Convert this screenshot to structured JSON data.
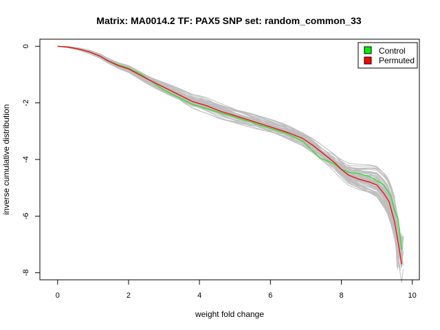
{
  "chart_data": {
    "type": "line",
    "title": "Matrix: MA0014.2 TF: PAX5 SNP set: random_common_33",
    "xlabel": "weight fold change",
    "ylabel": "inverse cumulative distribution",
    "xlim": [
      -0.5,
      10.2
    ],
    "ylim": [
      -8.25,
      0.25
    ],
    "x_ticks": [
      0,
      2,
      4,
      6,
      8,
      10
    ],
    "y_ticks": [
      0,
      -2,
      -4,
      -6,
      -8
    ],
    "x_tick_labels": [
      "0",
      "2",
      "4",
      "6",
      "8",
      "10"
    ],
    "y_tick_labels": [
      "0",
      "-2",
      "-4",
      "-6",
      "-8"
    ],
    "grid": false,
    "legend_position": "top-right",
    "legend": [
      {
        "label": "Control",
        "color": "#00ee00"
      },
      {
        "label": "Permuted",
        "color": "#ff0000"
      }
    ],
    "colors": {
      "background_lines": "#bebebe",
      "control": "#33dd33",
      "permuted": "#ee1111"
    },
    "series": [
      {
        "name": "Control",
        "color": "#33dd33",
        "x": [
          0,
          0.3,
          0.6,
          0.9,
          1.2,
          1.4,
          1.7,
          2.0,
          2.3,
          2.6,
          3.0,
          3.4,
          3.8,
          4.2,
          4.6,
          5.0,
          5.5,
          6.0,
          6.5,
          6.9,
          7.2,
          7.4,
          7.6,
          7.8,
          8.0,
          8.2,
          8.5,
          8.8,
          9.0,
          9.2,
          9.4,
          9.5,
          9.6,
          9.7
        ],
        "y": [
          0,
          -0.03,
          -0.1,
          -0.2,
          -0.35,
          -0.5,
          -0.65,
          -0.78,
          -0.95,
          -1.2,
          -1.55,
          -1.8,
          -2.05,
          -2.2,
          -2.35,
          -2.5,
          -2.7,
          -2.9,
          -3.1,
          -3.35,
          -3.7,
          -3.95,
          -4.05,
          -4.15,
          -4.35,
          -4.45,
          -4.5,
          -4.6,
          -4.75,
          -4.9,
          -5.3,
          -5.8,
          -6.1,
          -7.2
        ]
      },
      {
        "name": "Permuted",
        "color": "#ee1111",
        "x": [
          0,
          0.3,
          0.6,
          0.9,
          1.2,
          1.4,
          1.7,
          2.0,
          2.3,
          2.6,
          3.0,
          3.4,
          3.8,
          4.2,
          4.6,
          5.0,
          5.5,
          6.0,
          6.5,
          6.9,
          7.2,
          7.5,
          7.8,
          8.0,
          8.2,
          8.5,
          8.8,
          9.0,
          9.2,
          9.35,
          9.5,
          9.6,
          9.7
        ],
        "y": [
          0,
          -0.03,
          -0.1,
          -0.2,
          -0.35,
          -0.5,
          -0.68,
          -0.8,
          -1.0,
          -1.2,
          -1.45,
          -1.7,
          -1.95,
          -2.1,
          -2.3,
          -2.45,
          -2.65,
          -2.85,
          -3.05,
          -3.25,
          -3.5,
          -3.8,
          -4.1,
          -4.35,
          -4.55,
          -4.7,
          -4.8,
          -4.9,
          -5.2,
          -5.5,
          -6.2,
          -6.9,
          -7.7
        ]
      }
    ]
  }
}
